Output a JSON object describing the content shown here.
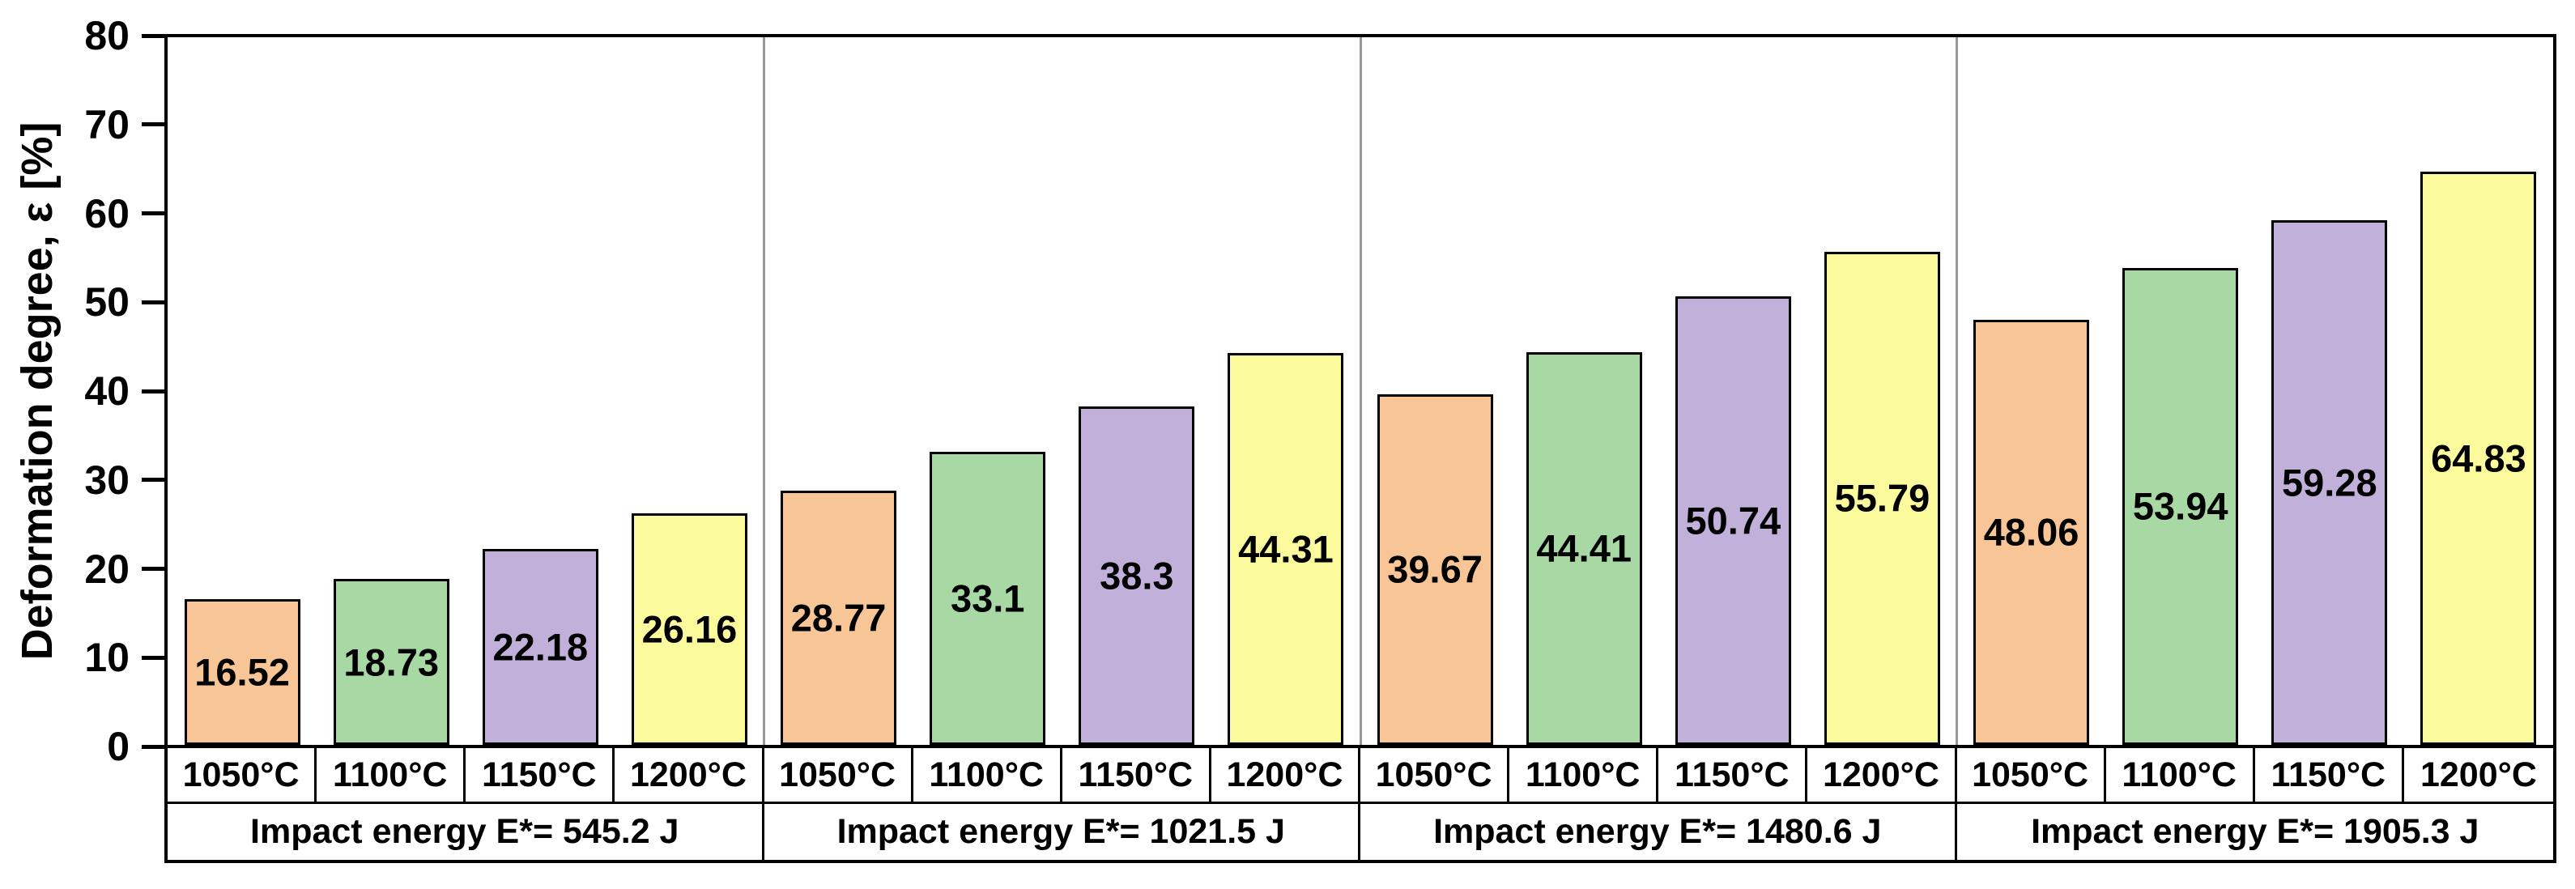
{
  "chart_data": {
    "type": "bar",
    "title": "",
    "ylabel": "Deformation degree, ε [%]",
    "ylim": [
      0,
      80
    ],
    "yticks": [
      0,
      10,
      20,
      30,
      40,
      50,
      60,
      70,
      80
    ],
    "grid": false,
    "legend_position": "none",
    "categories": [
      "1050°C",
      "1100°C",
      "1150°C",
      "1200°C"
    ],
    "bar_colors": [
      "#F7C596",
      "#A8D8A4",
      "#C1B0D9",
      "#FBFA9C"
    ],
    "bar_border_color": "#000000",
    "group_separator_color": "#999999",
    "groups": [
      {
        "label": "Impact energy E*= 545.2 J",
        "values": [
          16.52,
          18.73,
          22.18,
          26.16
        ]
      },
      {
        "label": "Impact energy E*= 1021.5 J",
        "values": [
          28.77,
          33.1,
          38.3,
          44.31
        ]
      },
      {
        "label": "Impact energy E*= 1480.6 J",
        "values": [
          39.67,
          44.41,
          50.74,
          55.79
        ]
      },
      {
        "label": "Impact energy E*= 1905.3 J",
        "values": [
          48.06,
          53.94,
          59.28,
          64.83
        ]
      }
    ]
  }
}
